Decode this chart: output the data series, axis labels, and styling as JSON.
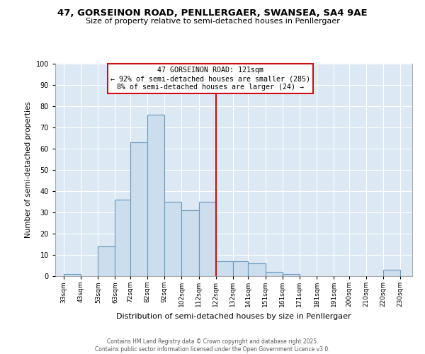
{
  "title_line1": "47, GORSEINON ROAD, PENLLERGAER, SWANSEA, SA4 9AE",
  "title_line2": "Size of property relative to semi-detached houses in Penllergaer",
  "xlabel": "Distribution of semi-detached houses by size in Penllergaer",
  "ylabel": "Number of semi-detached properties",
  "tick_labels": [
    "33sqm",
    "43sqm",
    "53sqm",
    "63sqm",
    "72sqm",
    "82sqm",
    "92sqm",
    "102sqm",
    "112sqm",
    "122sqm",
    "132sqm",
    "141sqm",
    "151sqm",
    "161sqm",
    "171sqm",
    "181sqm",
    "191sqm",
    "200sqm",
    "210sqm",
    "220sqm",
    "230sqm"
  ],
  "tick_positions": [
    33,
    43,
    53,
    63,
    72,
    82,
    92,
    102,
    112,
    122,
    132,
    141,
    151,
    161,
    171,
    181,
    191,
    200,
    210,
    220,
    230
  ],
  "bar_lefts": [
    33,
    43,
    53,
    63,
    72,
    82,
    92,
    102,
    112,
    122,
    132,
    141,
    151,
    161,
    171,
    181,
    191,
    200,
    210,
    220
  ],
  "bar_widths": [
    10,
    10,
    10,
    9,
    10,
    10,
    10,
    10,
    10,
    10,
    9,
    10,
    10,
    10,
    10,
    10,
    9,
    10,
    10,
    10
  ],
  "bar_heights": [
    1,
    0,
    14,
    36,
    63,
    76,
    35,
    31,
    35,
    7,
    7,
    6,
    2,
    1,
    0,
    0,
    0,
    0,
    0,
    3
  ],
  "bar_color": "#ccdded",
  "bar_edge_color": "#6699bb",
  "vline_x": 122,
  "vline_color": "#cc1111",
  "annotation_title": "47 GORSEINON ROAD: 121sqm",
  "annotation_line1": "← 92% of semi-detached houses are smaller (285)",
  "annotation_line2": "8% of semi-detached houses are larger (24) →",
  "annotation_box_color": "#ffffff",
  "annotation_box_edge": "#cc1111",
  "ylim": [
    0,
    100
  ],
  "yticks": [
    0,
    10,
    20,
    30,
    40,
    50,
    60,
    70,
    80,
    90,
    100
  ],
  "xlim_left": 28,
  "xlim_right": 237,
  "background_color": "#dce8f4",
  "grid_color": "#ffffff",
  "footer_line1": "Contains HM Land Registry data © Crown copyright and database right 2025.",
  "footer_line2": "Contains public sector information licensed under the Open Government Licence v3.0."
}
